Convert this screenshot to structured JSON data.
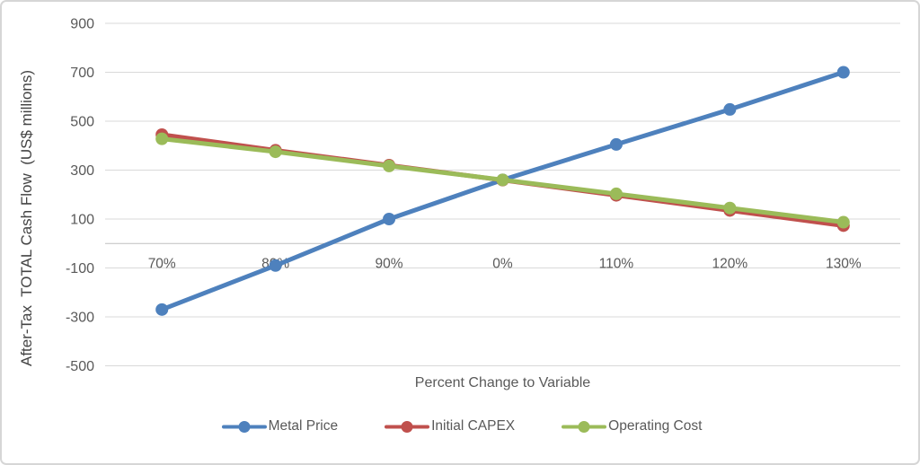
{
  "chart_data": {
    "type": "line",
    "title": "",
    "xlabel": "Percent Change to Variable",
    "ylabel": "After-Tax  TOTAL Cash Flow  (US$ millions)",
    "categories": [
      "70%",
      "80%",
      "90%",
      "0%",
      "110%",
      "120%",
      "130%"
    ],
    "series": [
      {
        "name": "Metal Price",
        "color": "#4E81BD",
        "values": [
          -270,
          -90,
          100,
          260,
          405,
          548,
          700
        ]
      },
      {
        "name": "Initial CAPEX",
        "color": "#C0504D",
        "values": [
          445,
          381,
          320,
          259,
          197,
          135,
          73
        ]
      },
      {
        "name": "Operating Cost",
        "color": "#9BBB59",
        "values": [
          428,
          375,
          317,
          260,
          203,
          145,
          87
        ]
      }
    ],
    "ylim": [
      -500,
      900
    ],
    "yticks": [
      900,
      700,
      500,
      300,
      100,
      -100,
      -300,
      -500
    ],
    "grid": true,
    "axis_cross_y": 0,
    "legend_position": "bottom"
  },
  "styles": {
    "grid_color": "#d9d9d9",
    "axis_line_color": "#bfbfbf",
    "tick_label_color": "#595959",
    "axis_title_color": "#595959",
    "border_color": "#d6d6d6",
    "background": "#ffffff"
  }
}
